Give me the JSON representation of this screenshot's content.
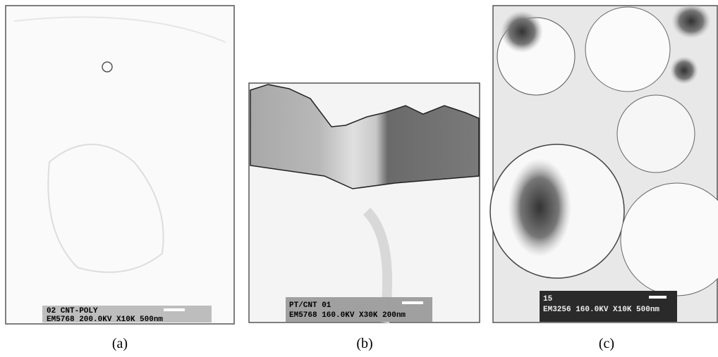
{
  "panels": [
    {
      "label": "(a)",
      "info": [
        "02 CNT-POLY",
        "EM5768 200.0KV X10K 500nm"
      ]
    },
    {
      "label": "(b)",
      "info": [
        "PT/CNT 01",
        "EM5768 160.0KV X30K 200nm"
      ]
    },
    {
      "label": "(c)",
      "info": [
        "15",
        "EM3256 160.0KV X10K 500nm"
      ]
    }
  ]
}
